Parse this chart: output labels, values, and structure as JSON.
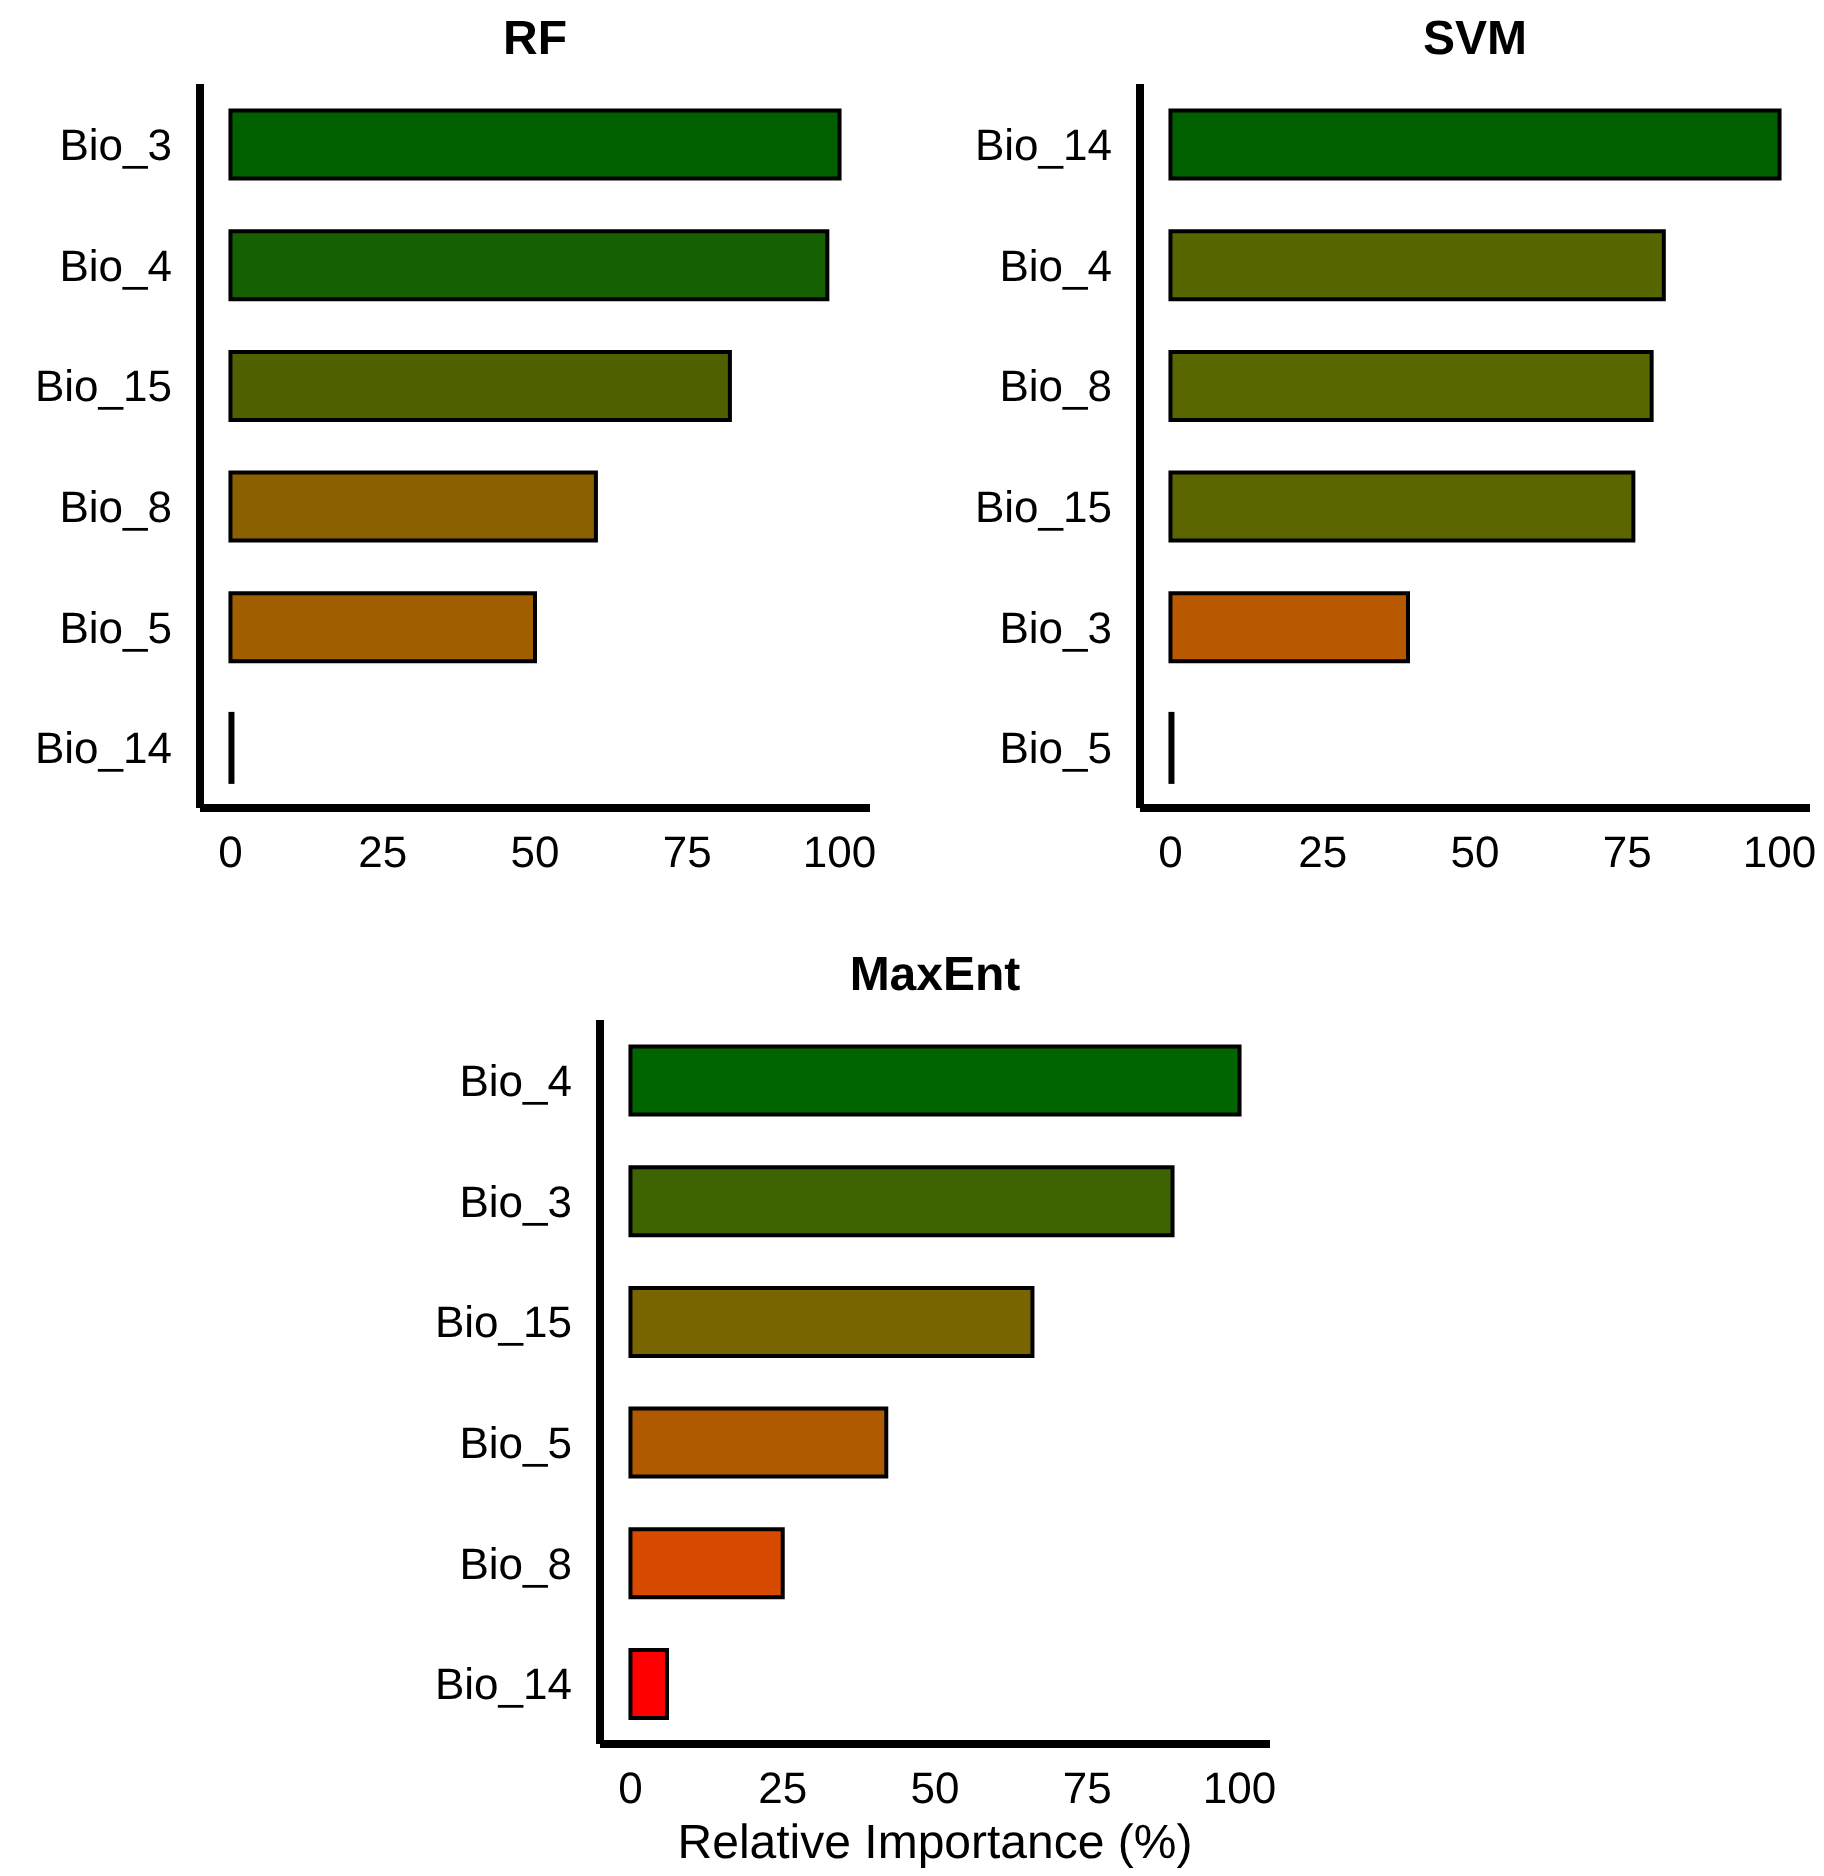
{
  "chart_data": [
    {
      "type": "bar",
      "orientation": "horizontal",
      "title": "RF",
      "categories": [
        "Bio_3",
        "Bio_4",
        "Bio_15",
        "Bio_8",
        "Bio_5",
        "Bio_14"
      ],
      "values": [
        100,
        98,
        82,
        60,
        50,
        0
      ],
      "colors": [
        "#006000",
        "#156000",
        "#4f6000",
        "#8a6000",
        "#a05e00",
        "#000000"
      ],
      "xlim": [
        -5,
        105
      ],
      "xticks": [
        0,
        25,
        50,
        75,
        100
      ],
      "grid": false,
      "legend": false
    },
    {
      "type": "bar",
      "orientation": "horizontal",
      "title": "SVM",
      "categories": [
        "Bio_14",
        "Bio_4",
        "Bio_8",
        "Bio_15",
        "Bio_3",
        "Bio_5"
      ],
      "values": [
        100,
        81,
        79,
        76,
        39,
        0
      ],
      "colors": [
        "#006000",
        "#586600",
        "#5a6600",
        "#5c6600",
        "#b85800",
        "#000000"
      ],
      "xlim": [
        -5,
        105
      ],
      "xticks": [
        0,
        25,
        50,
        75,
        100
      ],
      "grid": false,
      "legend": false
    },
    {
      "type": "bar",
      "orientation": "horizontal",
      "title": "MaxEnt",
      "xlabel": "Relative Importance (%)",
      "categories": [
        "Bio_4",
        "Bio_3",
        "Bio_15",
        "Bio_5",
        "Bio_8",
        "Bio_14"
      ],
      "values": [
        100,
        89,
        66,
        42,
        25,
        6
      ],
      "colors": [
        "#006400",
        "#3d6400",
        "#786400",
        "#b05a00",
        "#d84a00",
        "#ff0000"
      ],
      "xlim": [
        -5,
        105
      ],
      "xticks": [
        0,
        25,
        50,
        75,
        100
      ],
      "grid": false,
      "legend": false
    }
  ]
}
